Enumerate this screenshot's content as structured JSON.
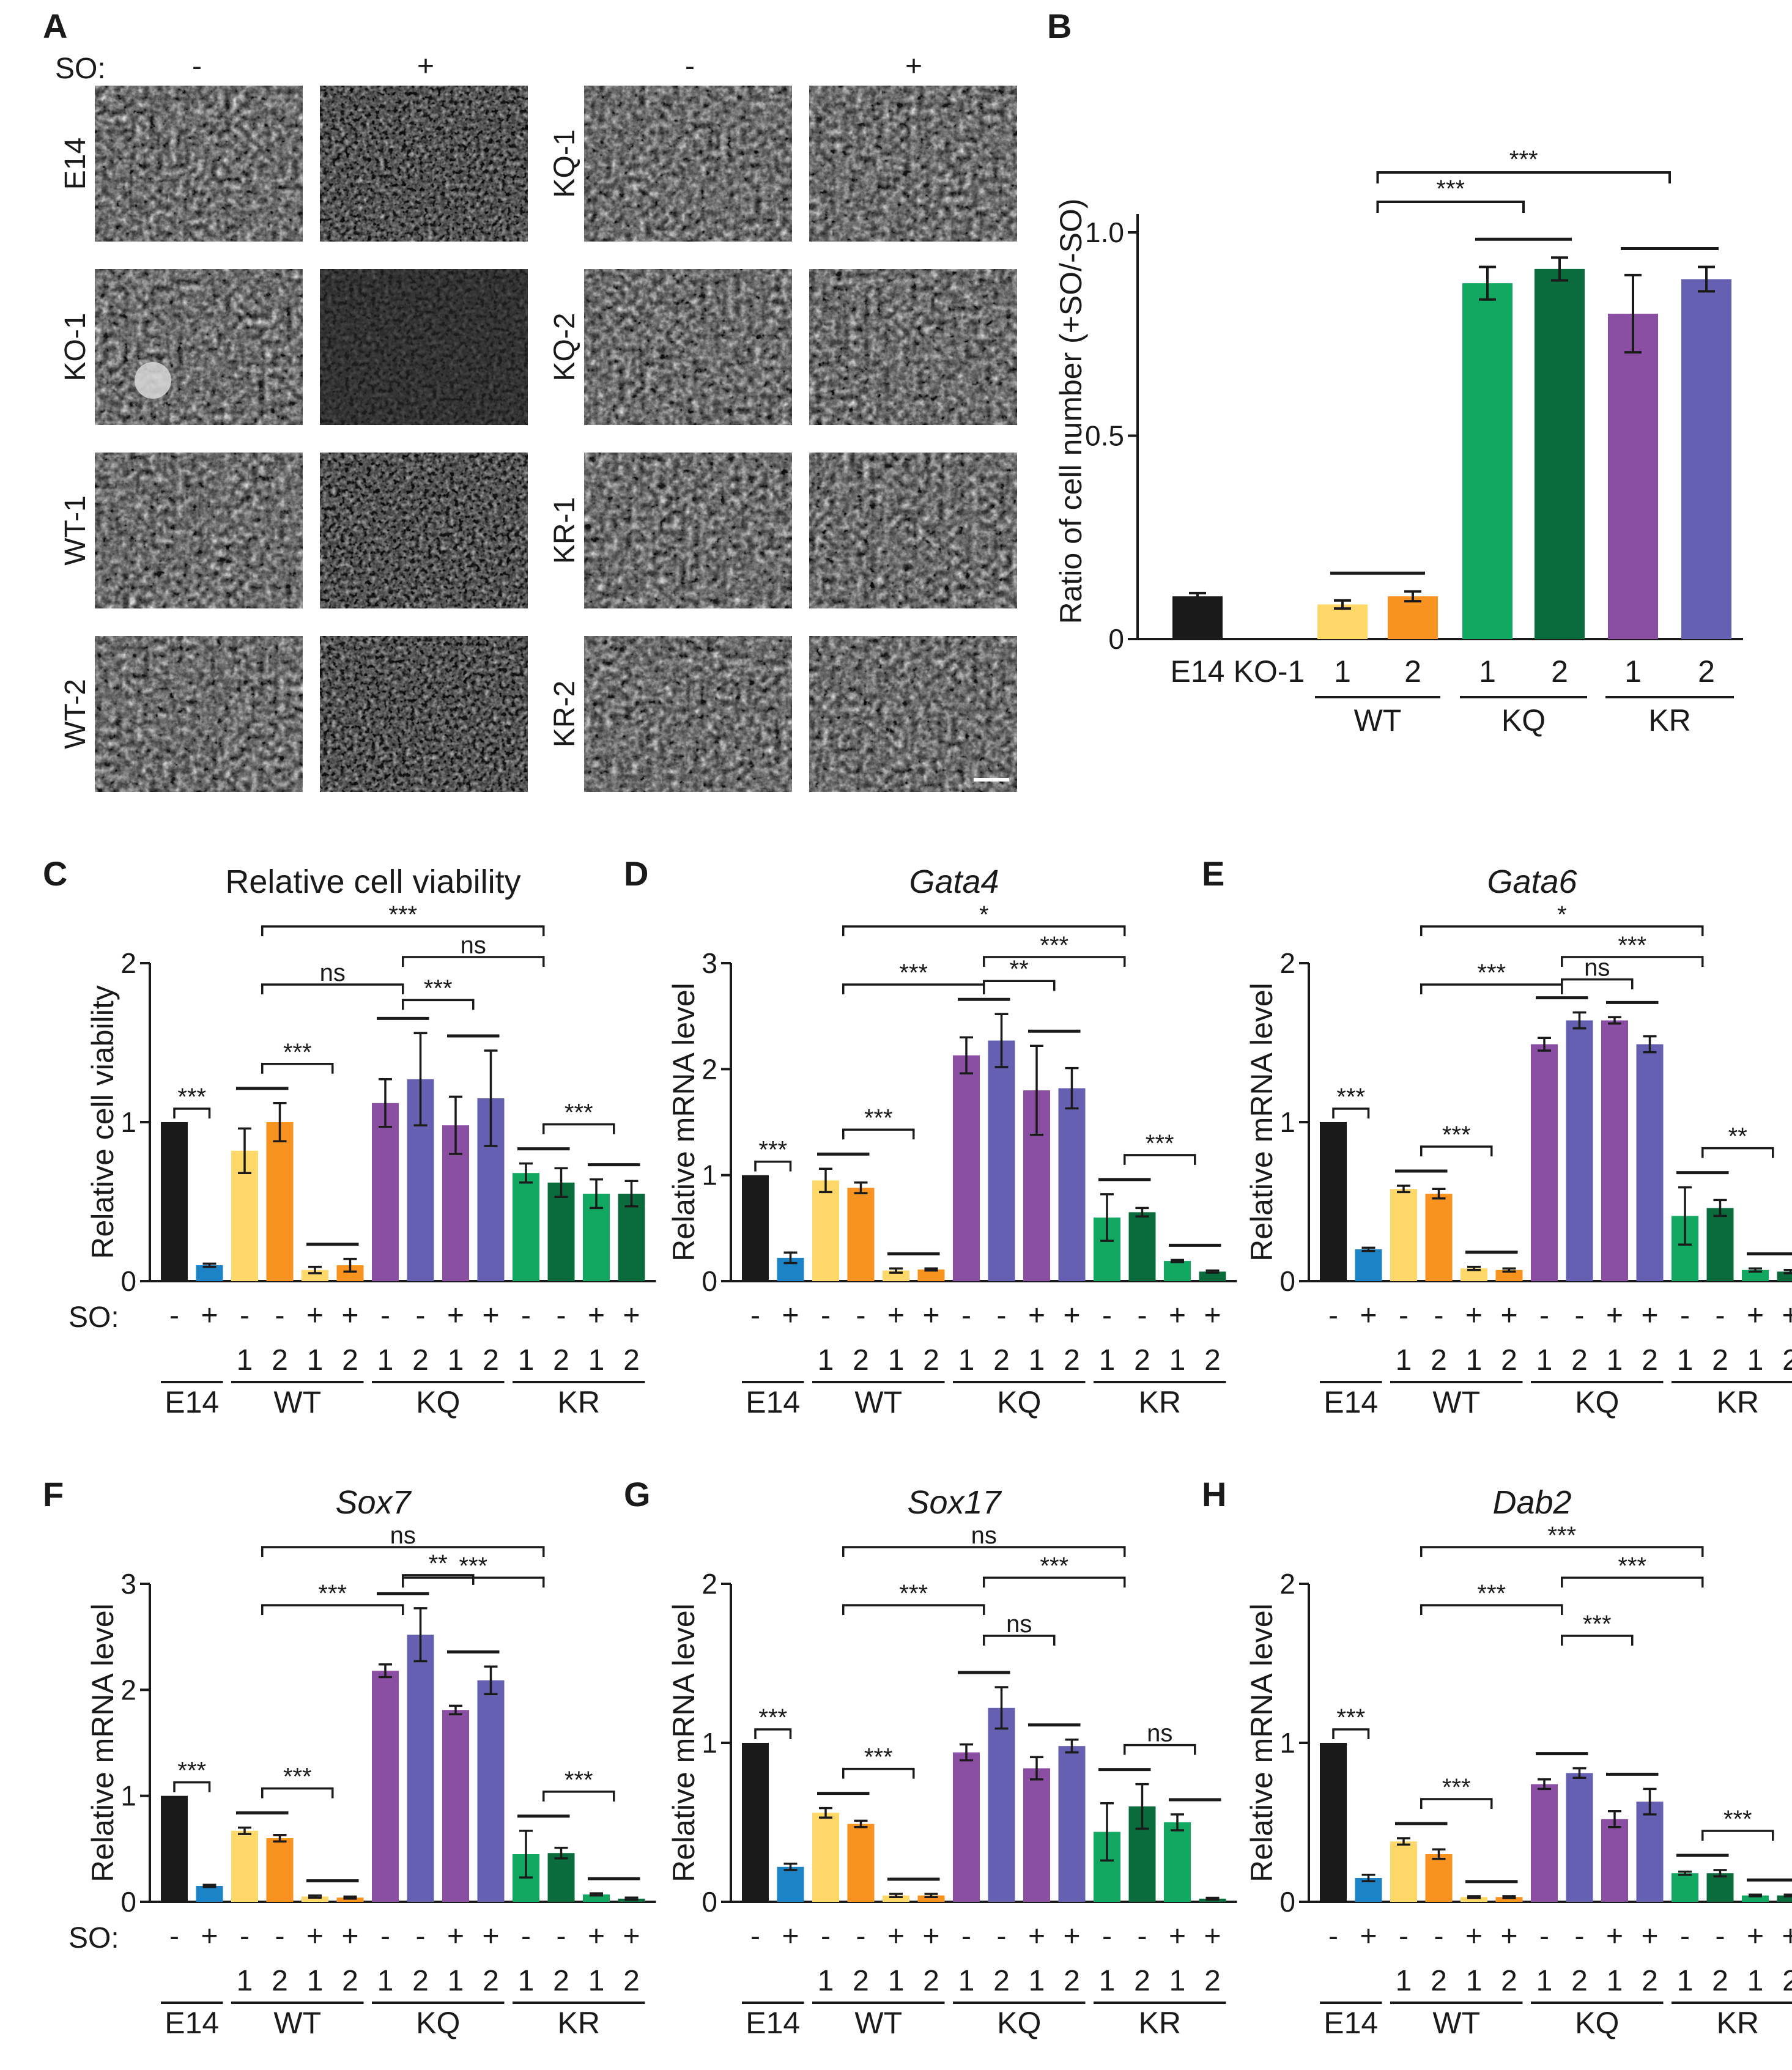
{
  "colors": {
    "E14_minus": "#1a1a1a",
    "E14_plus": "#1c84c6",
    "WT1": "#ffd86a",
    "WT2": "#f7931e",
    "KQ1": "#8a4fa3",
    "KQ2": "#6560b1",
    "KR1": "#12a862",
    "KR2": "#0a6b3c"
  },
  "panel_a": {
    "label": "A",
    "so_label": "SO:",
    "minus": "-",
    "plus": "+",
    "rows_left": [
      "E14",
      "KO-1",
      "WT-1",
      "WT-2"
    ],
    "rows_right": [
      "KQ-1",
      "KQ-2",
      "KR-1",
      "KR-2"
    ]
  },
  "panel_b": {
    "label": "B",
    "ylabel": "Ratio of  cell number (+SO/-SO)",
    "ticks": [
      "0",
      "0.5",
      "1.0"
    ],
    "xlabels": [
      "E14",
      "KO-1",
      "1",
      "2",
      "1",
      "2",
      "1",
      "2"
    ],
    "groups": [
      "WT",
      "KQ",
      "KR"
    ],
    "sig": [
      "***",
      "***"
    ]
  },
  "panels": {
    "C": {
      "label": "C",
      "title": "Relative cell viability",
      "ylabel": "Relative cell viability",
      "ticks": [
        "0",
        "1",
        "2"
      ],
      "sig": [
        "***",
        "***",
        "***",
        "ns",
        "***",
        "ns",
        "***"
      ]
    },
    "D": {
      "label": "D",
      "title": "Gata4",
      "ylabel": "Relative mRNA level",
      "ticks": [
        "0",
        "1",
        "2",
        "3"
      ],
      "sig": [
        "***",
        "***",
        "*",
        "***",
        "**",
        "***",
        "***"
      ]
    },
    "E": {
      "label": "E",
      "title": "Gata6",
      "ylabel": "Relative mRNA level",
      "ticks": [
        "0",
        "1",
        "2"
      ],
      "sig": [
        "***",
        "***",
        "*",
        "***",
        "ns",
        "***",
        "**"
      ]
    },
    "F": {
      "label": "F",
      "title": "Sox7",
      "ylabel": "Relative mRNA level",
      "ticks": [
        "0",
        "1",
        "2",
        "3"
      ],
      "sig": [
        "***",
        "***",
        "ns",
        "***",
        "**",
        "***",
        "***"
      ]
    },
    "G": {
      "label": "G",
      "title": "Sox17",
      "ylabel": "Relative mRNA level",
      "ticks": [
        "0",
        "1",
        "2"
      ],
      "sig": [
        "***",
        "***",
        "ns",
        "***",
        "ns",
        "***",
        "ns"
      ]
    },
    "H": {
      "label": "H",
      "title": "Dab2",
      "ylabel": "Relative mRNA level",
      "ticks": [
        "0",
        "1",
        "2"
      ],
      "sig": [
        "***",
        "***",
        "***",
        "***",
        "***",
        "***",
        "***"
      ]
    }
  },
  "axis_common": {
    "so_label": "SO:",
    "so_signs": [
      "-",
      "+",
      "-",
      "-",
      "+",
      "+",
      "-",
      "-",
      "+",
      "+",
      "-",
      "-",
      "+",
      "+"
    ],
    "clones": [
      "1",
      "2",
      "1",
      "2",
      "1",
      "2",
      "1",
      "2",
      "1",
      "2",
      "1",
      "2"
    ],
    "groups": [
      "E14",
      "WT",
      "KQ",
      "KR"
    ]
  },
  "chart_data": [
    {
      "panel": "B",
      "type": "bar",
      "title": "",
      "ylabel": "Ratio of  cell number (+SO/-SO)",
      "ylim": [
        0,
        1.0
      ],
      "categories": [
        "E14",
        "KO-1",
        "WT-1",
        "WT-2",
        "KQ-1",
        "KQ-2",
        "KR-1",
        "KR-2"
      ],
      "values": [
        0.105,
        0,
        0.085,
        0.105,
        0.875,
        0.91,
        0.8,
        0.885
      ],
      "errors": [
        0.008,
        0,
        0.01,
        0.012,
        0.04,
        0.028,
        0.095,
        0.03
      ]
    },
    {
      "panel": "C",
      "type": "bar",
      "title": "Relative cell viability",
      "ylabel": "Relative cell viability",
      "ylim": [
        0,
        2
      ],
      "categories": [
        "E14 -",
        "E14 +",
        "WT-1 -",
        "WT-2 -",
        "WT-1 +",
        "WT-2 +",
        "KQ-1 -",
        "KQ-2 -",
        "KQ-1 +",
        "KQ-2 +",
        "KR-1 -",
        "KR-2 -",
        "KR-1 +",
        "KR-2 +"
      ],
      "values": [
        1.0,
        0.1,
        0.82,
        1.0,
        0.07,
        0.1,
        1.12,
        1.27,
        0.98,
        1.15,
        0.68,
        0.62,
        0.55,
        0.55
      ],
      "errors": [
        0,
        0.01,
        0.14,
        0.12,
        0.02,
        0.04,
        0.15,
        0.29,
        0.18,
        0.3,
        0.06,
        0.09,
        0.09,
        0.08
      ]
    },
    {
      "panel": "D",
      "type": "bar",
      "title": "Gata4",
      "ylabel": "Relative mRNA level",
      "ylim": [
        0,
        3
      ],
      "categories": [
        "E14 -",
        "E14 +",
        "WT-1 -",
        "WT-2 -",
        "WT-1 +",
        "WT-2 +",
        "KQ-1 -",
        "KQ-2 -",
        "KQ-1 +",
        "KQ-2 +",
        "KR-1 -",
        "KR-2 -",
        "KR-1 +",
        "KR-2 +"
      ],
      "values": [
        1.0,
        0.22,
        0.95,
        0.88,
        0.1,
        0.11,
        2.13,
        2.27,
        1.8,
        1.82,
        0.6,
        0.65,
        0.19,
        0.09
      ],
      "errors": [
        0,
        0.05,
        0.11,
        0.05,
        0.02,
        0.01,
        0.17,
        0.25,
        0.42,
        0.19,
        0.22,
        0.04,
        0.01,
        0.01
      ]
    },
    {
      "panel": "E",
      "type": "bar",
      "title": "Gata6",
      "ylabel": "Relative mRNA level",
      "ylim": [
        0,
        2
      ],
      "categories": [
        "E14 -",
        "E14 +",
        "WT-1 -",
        "WT-2 -",
        "WT-1 +",
        "WT-2 +",
        "KQ-1 -",
        "KQ-2 -",
        "KQ-1 +",
        "KQ-2 +",
        "KR-1 -",
        "KR-2 -",
        "KR-1 +",
        "KR-2 +"
      ],
      "values": [
        1.0,
        0.2,
        0.58,
        0.55,
        0.08,
        0.07,
        1.49,
        1.64,
        1.64,
        1.49,
        0.41,
        0.46,
        0.07,
        0.06
      ],
      "errors": [
        0,
        0.01,
        0.02,
        0.03,
        0.01,
        0.01,
        0.04,
        0.05,
        0.02,
        0.05,
        0.18,
        0.05,
        0.01,
        0.01
      ]
    },
    {
      "panel": "F",
      "type": "bar",
      "title": "Sox7",
      "ylabel": "Relative mRNA level",
      "ylim": [
        0,
        3
      ],
      "categories": [
        "E14 -",
        "E14 +",
        "WT-1 -",
        "WT-2 -",
        "WT-1 +",
        "WT-2 +",
        "KQ-1 -",
        "KQ-2 -",
        "KQ-1 +",
        "KQ-2 +",
        "KR-1 -",
        "KR-2 -",
        "KR-1 +",
        "KR-2 +"
      ],
      "values": [
        1.0,
        0.15,
        0.67,
        0.6,
        0.05,
        0.04,
        2.18,
        2.52,
        1.81,
        2.09,
        0.45,
        0.46,
        0.07,
        0.03
      ],
      "errors": [
        0,
        0.01,
        0.03,
        0.03,
        0.01,
        0.01,
        0.06,
        0.25,
        0.04,
        0.13,
        0.22,
        0.05,
        0.01,
        0.01
      ]
    },
    {
      "panel": "G",
      "type": "bar",
      "title": "Sox17",
      "ylabel": "Relative mRNA level",
      "ylim": [
        0,
        2
      ],
      "categories": [
        "E14 -",
        "E14 +",
        "WT-1 -",
        "WT-2 -",
        "WT-1 +",
        "WT-2 +",
        "KQ-1 -",
        "KQ-2 -",
        "KQ-1 +",
        "KQ-2 +",
        "KR-1 -",
        "KR-2 -",
        "KR-1 +",
        "KR-2 +"
      ],
      "values": [
        1.0,
        0.22,
        0.56,
        0.49,
        0.04,
        0.04,
        0.94,
        1.22,
        0.84,
        0.98,
        0.44,
        0.6,
        0.5,
        0.02
      ],
      "errors": [
        0,
        0.02,
        0.03,
        0.02,
        0.01,
        0.01,
        0.05,
        0.13,
        0.07,
        0.04,
        0.18,
        0.14,
        0.05,
        0.005
      ]
    },
    {
      "panel": "H",
      "type": "bar",
      "title": "Dab2",
      "ylabel": "Relative mRNA level",
      "ylim": [
        0,
        2
      ],
      "categories": [
        "E14 -",
        "E14 +",
        "WT-1 -",
        "WT-2 -",
        "WT-1 +",
        "WT-2 +",
        "KQ-1 -",
        "KQ-2 -",
        "KQ-1 +",
        "KQ-2 +",
        "KR-1 -",
        "KR-2 -",
        "KR-1 +",
        "KR-2 +"
      ],
      "values": [
        1.0,
        0.15,
        0.38,
        0.3,
        0.03,
        0.03,
        0.74,
        0.81,
        0.52,
        0.63,
        0.18,
        0.18,
        0.04,
        0.04
      ],
      "errors": [
        0,
        0.02,
        0.02,
        0.03,
        0.005,
        0.005,
        0.03,
        0.03,
        0.05,
        0.08,
        0.01,
        0.02,
        0.005,
        0.005
      ]
    }
  ]
}
